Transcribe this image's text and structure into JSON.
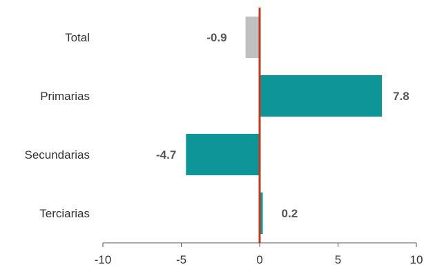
{
  "chart_data": {
    "type": "bar",
    "orientation": "horizontal",
    "categories": [
      "Total",
      "Primarias",
      "Secundarias",
      "Terciarias"
    ],
    "values": [
      -0.9,
      7.8,
      -4.7,
      0.2
    ],
    "data_labels": [
      "-0.9",
      "7.8",
      "-4.7",
      "0.2"
    ],
    "xlim": [
      -10,
      10
    ],
    "xticks": [
      -10,
      -5,
      0,
      5,
      10
    ],
    "xtick_labels": [
      "-10",
      "-5",
      "0",
      "5",
      "10"
    ],
    "grid": false,
    "colors": {
      "total": "#c0c0c0",
      "components": "#0e9597",
      "zero_line": "#c0391b"
    }
  }
}
